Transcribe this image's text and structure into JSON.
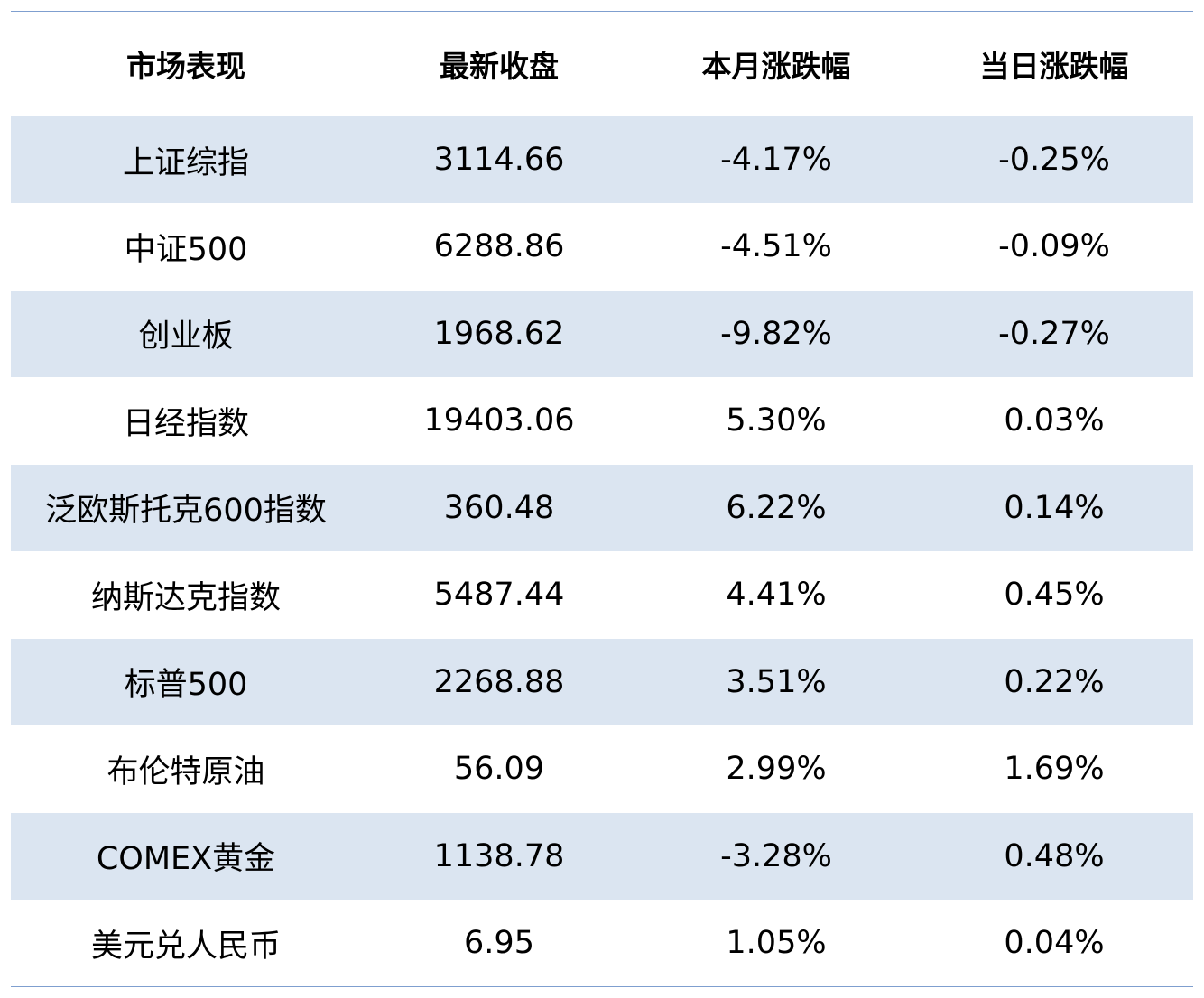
{
  "table": {
    "headers": [
      "市场表现",
      "最新收盘",
      "本月涨跌幅",
      "当日涨跌幅"
    ],
    "rows": [
      [
        "上证综指",
        "3114.66",
        "-4.17%",
        "-0.25%"
      ],
      [
        "中证500",
        "6288.86",
        "-4.51%",
        "-0.09%"
      ],
      [
        "创业板",
        "1968.62",
        "-9.82%",
        "-0.27%"
      ],
      [
        "日经指数",
        "19403.06",
        "5.30%",
        "0.03%"
      ],
      [
        "泛欧斯托克600指数",
        "360.48",
        "6.22%",
        "0.14%"
      ],
      [
        "纳斯达克指数",
        "5487.44",
        "4.41%",
        "0.45%"
      ],
      [
        "标普500",
        "2268.88",
        "3.51%",
        "0.22%"
      ],
      [
        "布伦特原油",
        "56.09",
        "2.99%",
        "1.69%"
      ],
      [
        "COMEX黄金",
        "1138.78",
        "-3.28%",
        "0.48%"
      ],
      [
        "美元兑人民币",
        "6.95",
        "1.05%",
        "0.04%"
      ]
    ]
  },
  "colors": {
    "stripe": "#dbe5f1",
    "rule": "#7f9fcf"
  }
}
